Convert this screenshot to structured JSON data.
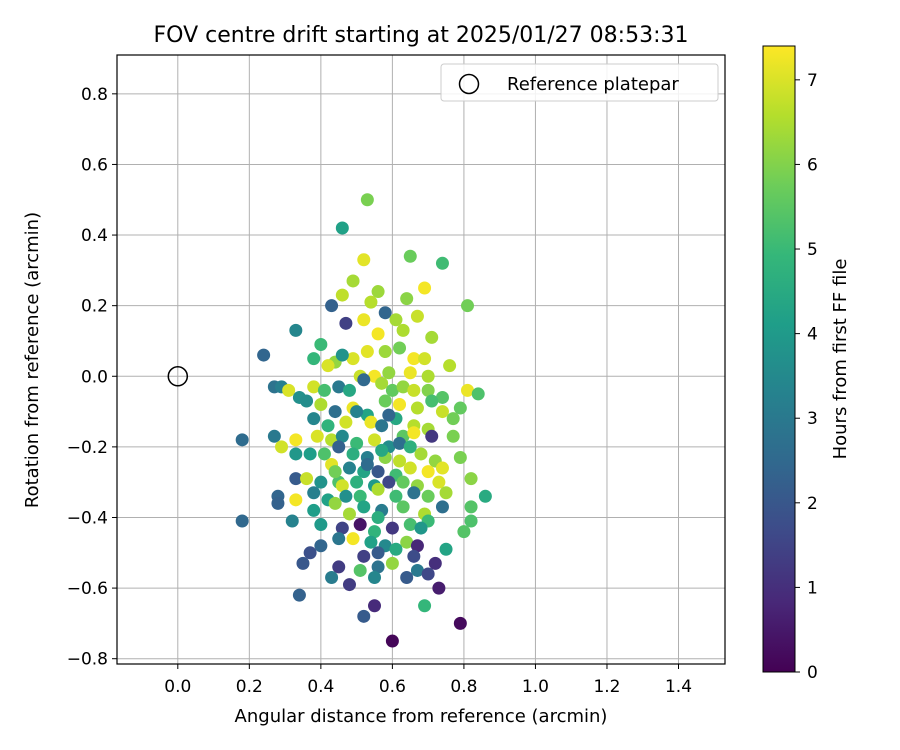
{
  "chart_data": {
    "type": "scatter",
    "title": "FOV centre drift starting at 2025/01/27 08:53:31",
    "xlabel": "Angular distance from reference (arcmin)",
    "ylabel": "Rotation from reference (arcmin)",
    "xlim": [
      -0.17,
      1.53
    ],
    "ylim": [
      -0.815,
      0.91
    ],
    "xticks": [
      0.0,
      0.2,
      0.4,
      0.6,
      0.8,
      1.0,
      1.2,
      1.4
    ],
    "yticks": [
      -0.8,
      -0.6,
      -0.4,
      -0.2,
      0.0,
      0.2,
      0.4,
      0.6,
      0.8
    ],
    "grid": true,
    "legend": {
      "position": "top-right",
      "entries": [
        "Reference platepar"
      ]
    },
    "colorbar": {
      "label": "Hours from first FF file",
      "min": 0,
      "max": 7.4,
      "ticks": [
        0,
        1,
        2,
        3,
        4,
        5,
        6,
        7
      ],
      "colormap": "viridis"
    },
    "reference_point": {
      "x": 0.0,
      "y": 0.0,
      "label": "Reference platepar"
    },
    "points": [
      {
        "x": 0.53,
        "y": 0.5,
        "t": 5.9
      },
      {
        "x": 0.46,
        "y": 0.42,
        "t": 4.2
      },
      {
        "x": 0.65,
        "y": 0.34,
        "t": 5.7
      },
      {
        "x": 0.74,
        "y": 0.32,
        "t": 5.1
      },
      {
        "x": 0.52,
        "y": 0.33,
        "t": 7.1
      },
      {
        "x": 0.49,
        "y": 0.27,
        "t": 6.4
      },
      {
        "x": 0.56,
        "y": 0.24,
        "t": 6.3
      },
      {
        "x": 0.46,
        "y": 0.23,
        "t": 6.7
      },
      {
        "x": 0.69,
        "y": 0.25,
        "t": 7.3
      },
      {
        "x": 0.81,
        "y": 0.2,
        "t": 5.8
      },
      {
        "x": 0.43,
        "y": 0.2,
        "t": 2.3
      },
      {
        "x": 0.64,
        "y": 0.22,
        "t": 6.1
      },
      {
        "x": 0.54,
        "y": 0.21,
        "t": 6.6
      },
      {
        "x": 0.58,
        "y": 0.18,
        "t": 2.4
      },
      {
        "x": 0.61,
        "y": 0.16,
        "t": 6.4
      },
      {
        "x": 0.67,
        "y": 0.17,
        "t": 6.8
      },
      {
        "x": 0.33,
        "y": 0.13,
        "t": 3.4
      },
      {
        "x": 0.24,
        "y": 0.06,
        "t": 2.4
      },
      {
        "x": 0.4,
        "y": 0.09,
        "t": 5.0
      },
      {
        "x": 0.52,
        "y": 0.16,
        "t": 7.2
      },
      {
        "x": 0.47,
        "y": 0.15,
        "t": 1.4
      },
      {
        "x": 0.56,
        "y": 0.12,
        "t": 7.3
      },
      {
        "x": 0.63,
        "y": 0.13,
        "t": 6.5
      },
      {
        "x": 0.71,
        "y": 0.11,
        "t": 6.4
      },
      {
        "x": 0.38,
        "y": 0.05,
        "t": 4.9
      },
      {
        "x": 0.44,
        "y": 0.04,
        "t": 6.2
      },
      {
        "x": 0.49,
        "y": 0.05,
        "t": 7.0
      },
      {
        "x": 0.53,
        "y": 0.07,
        "t": 7.1
      },
      {
        "x": 0.58,
        "y": 0.07,
        "t": 6.3
      },
      {
        "x": 0.62,
        "y": 0.08,
        "t": 5.8
      },
      {
        "x": 0.66,
        "y": 0.05,
        "t": 7.3
      },
      {
        "x": 0.69,
        "y": 0.05,
        "t": 6.9
      },
      {
        "x": 0.76,
        "y": 0.03,
        "t": 6.6
      },
      {
        "x": 0.42,
        "y": 0.03,
        "t": 7.0
      },
      {
        "x": 0.46,
        "y": 0.06,
        "t": 3.8
      },
      {
        "x": 0.51,
        "y": 0.0,
        "t": 6.8
      },
      {
        "x": 0.55,
        "y": 0.0,
        "t": 7.3
      },
      {
        "x": 0.59,
        "y": 0.01,
        "t": 6.2
      },
      {
        "x": 0.65,
        "y": 0.01,
        "t": 7.2
      },
      {
        "x": 0.7,
        "y": 0.0,
        "t": 6.5
      },
      {
        "x": 0.27,
        "y": -0.03,
        "t": 2.8
      },
      {
        "x": 0.29,
        "y": -0.03,
        "t": 3.2
      },
      {
        "x": 0.31,
        "y": -0.04,
        "t": 7.0
      },
      {
        "x": 0.34,
        "y": -0.06,
        "t": 3.7
      },
      {
        "x": 0.38,
        "y": -0.03,
        "t": 6.9
      },
      {
        "x": 0.41,
        "y": -0.04,
        "t": 5.2
      },
      {
        "x": 0.45,
        "y": -0.03,
        "t": 3.0
      },
      {
        "x": 0.48,
        "y": -0.04,
        "t": 4.4
      },
      {
        "x": 0.52,
        "y": -0.01,
        "t": 2.5
      },
      {
        "x": 0.57,
        "y": -0.02,
        "t": 6.4
      },
      {
        "x": 0.6,
        "y": -0.04,
        "t": 5.6
      },
      {
        "x": 0.63,
        "y": -0.03,
        "t": 6.2
      },
      {
        "x": 0.66,
        "y": -0.04,
        "t": 6.8
      },
      {
        "x": 0.7,
        "y": -0.04,
        "t": 6.0
      },
      {
        "x": 0.74,
        "y": -0.06,
        "t": 5.4
      },
      {
        "x": 0.81,
        "y": -0.04,
        "t": 7.2
      },
      {
        "x": 0.84,
        "y": -0.05,
        "t": 5.3
      },
      {
        "x": 0.36,
        "y": -0.07,
        "t": 3.6
      },
      {
        "x": 0.4,
        "y": -0.08,
        "t": 6.5
      },
      {
        "x": 0.44,
        "y": -0.1,
        "t": 2.7
      },
      {
        "x": 0.49,
        "y": -0.09,
        "t": 7.2
      },
      {
        "x": 0.53,
        "y": -0.11,
        "t": 4.3
      },
      {
        "x": 0.58,
        "y": -0.07,
        "t": 5.7
      },
      {
        "x": 0.62,
        "y": -0.08,
        "t": 7.3
      },
      {
        "x": 0.67,
        "y": -0.09,
        "t": 6.6
      },
      {
        "x": 0.71,
        "y": -0.07,
        "t": 5.2
      },
      {
        "x": 0.79,
        "y": -0.09,
        "t": 5.6
      },
      {
        "x": 0.74,
        "y": -0.1,
        "t": 6.8
      },
      {
        "x": 0.38,
        "y": -0.12,
        "t": 3.4
      },
      {
        "x": 0.42,
        "y": -0.14,
        "t": 4.8
      },
      {
        "x": 0.47,
        "y": -0.13,
        "t": 6.9
      },
      {
        "x": 0.54,
        "y": -0.13,
        "t": 7.2
      },
      {
        "x": 0.57,
        "y": -0.14,
        "t": 2.9
      },
      {
        "x": 0.61,
        "y": -0.12,
        "t": 4.4
      },
      {
        "x": 0.66,
        "y": -0.14,
        "t": 6.6
      },
      {
        "x": 0.7,
        "y": -0.15,
        "t": 6.4
      },
      {
        "x": 0.77,
        "y": -0.12,
        "t": 5.8
      },
      {
        "x": 0.18,
        "y": -0.18,
        "t": 2.6
      },
      {
        "x": 0.27,
        "y": -0.17,
        "t": 3.0
      },
      {
        "x": 0.29,
        "y": -0.2,
        "t": 6.9
      },
      {
        "x": 0.33,
        "y": -0.18,
        "t": 7.3
      },
      {
        "x": 0.39,
        "y": -0.17,
        "t": 7.0
      },
      {
        "x": 0.43,
        "y": -0.18,
        "t": 6.6
      },
      {
        "x": 0.46,
        "y": -0.17,
        "t": 3.5
      },
      {
        "x": 0.5,
        "y": -0.19,
        "t": 5.0
      },
      {
        "x": 0.55,
        "y": -0.18,
        "t": 6.9
      },
      {
        "x": 0.59,
        "y": -0.2,
        "t": 3.6
      },
      {
        "x": 0.63,
        "y": -0.17,
        "t": 5.5
      },
      {
        "x": 0.66,
        "y": -0.16,
        "t": 7.3
      },
      {
        "x": 0.71,
        "y": -0.17,
        "t": 1.2
      },
      {
        "x": 0.77,
        "y": -0.17,
        "t": 5.9
      },
      {
        "x": 0.33,
        "y": -0.22,
        "t": 3.9
      },
      {
        "x": 0.37,
        "y": -0.22,
        "t": 4.1
      },
      {
        "x": 0.41,
        "y": -0.22,
        "t": 5.3
      },
      {
        "x": 0.45,
        "y": -0.2,
        "t": 2.3
      },
      {
        "x": 0.49,
        "y": -0.22,
        "t": 4.6
      },
      {
        "x": 0.53,
        "y": -0.23,
        "t": 3.2
      },
      {
        "x": 0.58,
        "y": -0.23,
        "t": 6.1
      },
      {
        "x": 0.62,
        "y": -0.24,
        "t": 6.7
      },
      {
        "x": 0.68,
        "y": -0.22,
        "t": 6.4
      },
      {
        "x": 0.72,
        "y": -0.24,
        "t": 6.2
      },
      {
        "x": 0.79,
        "y": -0.23,
        "t": 5.9
      },
      {
        "x": 0.43,
        "y": -0.25,
        "t": 7.1
      },
      {
        "x": 0.48,
        "y": -0.26,
        "t": 3.3
      },
      {
        "x": 0.52,
        "y": -0.27,
        "t": 4.3
      },
      {
        "x": 0.56,
        "y": -0.27,
        "t": 2.0
      },
      {
        "x": 0.61,
        "y": -0.28,
        "t": 5.1
      },
      {
        "x": 0.65,
        "y": -0.26,
        "t": 6.9
      },
      {
        "x": 0.7,
        "y": -0.27,
        "t": 7.3
      },
      {
        "x": 0.74,
        "y": -0.26,
        "t": 7.1
      },
      {
        "x": 0.33,
        "y": -0.29,
        "t": 2.1
      },
      {
        "x": 0.36,
        "y": -0.29,
        "t": 6.8
      },
      {
        "x": 0.4,
        "y": -0.3,
        "t": 3.8
      },
      {
        "x": 0.45,
        "y": -0.3,
        "t": 5.3
      },
      {
        "x": 0.5,
        "y": -0.3,
        "t": 4.7
      },
      {
        "x": 0.55,
        "y": -0.31,
        "t": 4.0
      },
      {
        "x": 0.59,
        "y": -0.3,
        "t": 1.6
      },
      {
        "x": 0.63,
        "y": -0.3,
        "t": 5.6
      },
      {
        "x": 0.67,
        "y": -0.31,
        "t": 6.2
      },
      {
        "x": 0.73,
        "y": -0.3,
        "t": 7.0
      },
      {
        "x": 0.82,
        "y": -0.29,
        "t": 6.1
      },
      {
        "x": 0.28,
        "y": -0.34,
        "t": 2.4
      },
      {
        "x": 0.33,
        "y": -0.35,
        "t": 7.3
      },
      {
        "x": 0.38,
        "y": -0.33,
        "t": 3.2
      },
      {
        "x": 0.42,
        "y": -0.35,
        "t": 4.2
      },
      {
        "x": 0.46,
        "y": -0.31,
        "t": 6.9
      },
      {
        "x": 0.51,
        "y": -0.34,
        "t": 5.0
      },
      {
        "x": 0.56,
        "y": -0.32,
        "t": 6.5
      },
      {
        "x": 0.61,
        "y": -0.34,
        "t": 5.1
      },
      {
        "x": 0.66,
        "y": -0.33,
        "t": 2.8
      },
      {
        "x": 0.7,
        "y": -0.34,
        "t": 5.7
      },
      {
        "x": 0.75,
        "y": -0.33,
        "t": 6.4
      },
      {
        "x": 0.82,
        "y": -0.37,
        "t": 5.4
      },
      {
        "x": 0.86,
        "y": -0.34,
        "t": 4.5
      },
      {
        "x": 0.28,
        "y": -0.36,
        "t": 2.3
      },
      {
        "x": 0.44,
        "y": -0.36,
        "t": 6.2
      },
      {
        "x": 0.48,
        "y": -0.39,
        "t": 6.4
      },
      {
        "x": 0.52,
        "y": -0.37,
        "t": 4.3
      },
      {
        "x": 0.57,
        "y": -0.38,
        "t": 3.1
      },
      {
        "x": 0.63,
        "y": -0.37,
        "t": 5.5
      },
      {
        "x": 0.69,
        "y": -0.39,
        "t": 6.5
      },
      {
        "x": 0.74,
        "y": -0.37,
        "t": 2.7
      },
      {
        "x": 0.18,
        "y": -0.41,
        "t": 2.5
      },
      {
        "x": 0.32,
        "y": -0.41,
        "t": 3.3
      },
      {
        "x": 0.4,
        "y": -0.42,
        "t": 4.0
      },
      {
        "x": 0.46,
        "y": -0.43,
        "t": 1.5
      },
      {
        "x": 0.51,
        "y": -0.42,
        "t": 0.4
      },
      {
        "x": 0.55,
        "y": -0.44,
        "t": 4.8
      },
      {
        "x": 0.6,
        "y": -0.43,
        "t": 1.2
      },
      {
        "x": 0.65,
        "y": -0.42,
        "t": 5.2
      },
      {
        "x": 0.7,
        "y": -0.41,
        "t": 5.0
      },
      {
        "x": 0.82,
        "y": -0.41,
        "t": 5.3
      },
      {
        "x": 0.45,
        "y": -0.46,
        "t": 2.9
      },
      {
        "x": 0.49,
        "y": -0.46,
        "t": 7.3
      },
      {
        "x": 0.54,
        "y": -0.47,
        "t": 4.2
      },
      {
        "x": 0.58,
        "y": -0.48,
        "t": 3.5
      },
      {
        "x": 0.64,
        "y": -0.47,
        "t": 6.1
      },
      {
        "x": 0.67,
        "y": -0.48,
        "t": 0.8
      },
      {
        "x": 0.8,
        "y": -0.44,
        "t": 5.4
      },
      {
        "x": 0.4,
        "y": -0.48,
        "t": 2.4
      },
      {
        "x": 0.37,
        "y": -0.5,
        "t": 1.8
      },
      {
        "x": 0.52,
        "y": -0.51,
        "t": 1.4
      },
      {
        "x": 0.56,
        "y": -0.5,
        "t": 2.1
      },
      {
        "x": 0.61,
        "y": -0.49,
        "t": 4.5
      },
      {
        "x": 0.66,
        "y": -0.51,
        "t": 1.7
      },
      {
        "x": 0.75,
        "y": -0.49,
        "t": 4.3
      },
      {
        "x": 0.35,
        "y": -0.53,
        "t": 2.0
      },
      {
        "x": 0.45,
        "y": -0.54,
        "t": 1.3
      },
      {
        "x": 0.51,
        "y": -0.55,
        "t": 5.4
      },
      {
        "x": 0.56,
        "y": -0.54,
        "t": 2.8
      },
      {
        "x": 0.6,
        "y": -0.53,
        "t": 6.2
      },
      {
        "x": 0.67,
        "y": -0.55,
        "t": 3.0
      },
      {
        "x": 0.72,
        "y": -0.53,
        "t": 1.0
      },
      {
        "x": 0.43,
        "y": -0.57,
        "t": 3.1
      },
      {
        "x": 0.48,
        "y": -0.59,
        "t": 1.3
      },
      {
        "x": 0.55,
        "y": -0.57,
        "t": 3.4
      },
      {
        "x": 0.64,
        "y": -0.57,
        "t": 2.1
      },
      {
        "x": 0.7,
        "y": -0.56,
        "t": 1.6
      },
      {
        "x": 0.73,
        "y": -0.6,
        "t": 0.6
      },
      {
        "x": 0.34,
        "y": -0.62,
        "t": 2.3
      },
      {
        "x": 0.55,
        "y": -0.65,
        "t": 0.9
      },
      {
        "x": 0.69,
        "y": -0.65,
        "t": 4.9
      },
      {
        "x": 0.52,
        "y": -0.68,
        "t": 2.1
      },
      {
        "x": 0.79,
        "y": -0.7,
        "t": 0.2
      },
      {
        "x": 0.6,
        "y": -0.75,
        "t": 0.1
      },
      {
        "x": 0.53,
        "y": -0.25,
        "t": 2.6
      },
      {
        "x": 0.57,
        "y": -0.21,
        "t": 4.4
      },
      {
        "x": 0.47,
        "y": -0.34,
        "t": 3.7
      },
      {
        "x": 0.62,
        "y": -0.19,
        "t": 2.7
      },
      {
        "x": 0.38,
        "y": -0.38,
        "t": 4.1
      },
      {
        "x": 0.68,
        "y": -0.43,
        "t": 3.9
      },
      {
        "x": 0.5,
        "y": -0.1,
        "t": 3.3
      },
      {
        "x": 0.59,
        "y": -0.11,
        "t": 2.4
      },
      {
        "x": 0.44,
        "y": -0.27,
        "t": 5.8
      },
      {
        "x": 0.65,
        "y": -0.2,
        "t": 4.7
      },
      {
        "x": 0.56,
        "y": -0.4,
        "t": 4.6
      }
    ]
  }
}
